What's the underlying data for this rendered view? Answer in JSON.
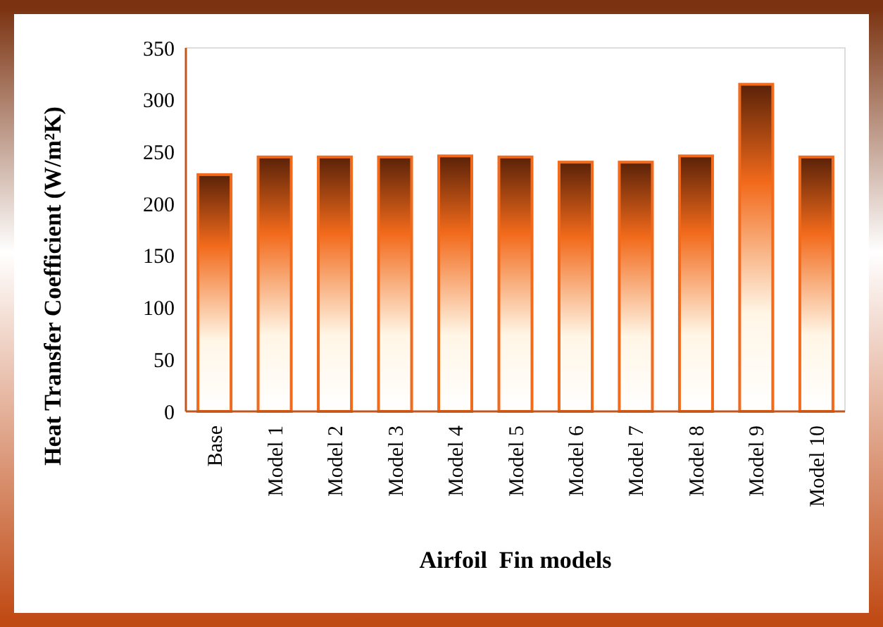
{
  "chart_data": {
    "type": "bar",
    "xlabel": "Airfoil  Fin models",
    "ylabel": "Heat Transfer Coefficient (W/m²K)",
    "categories": [
      "Base",
      "Model 1",
      "Model 2",
      "Model 3",
      "Model 4",
      "Model 5",
      "Model 6",
      "Model 7",
      "Model 8",
      "Model 9",
      "Model 10"
    ],
    "values": [
      228,
      245,
      245,
      245,
      246,
      245,
      240,
      240,
      246,
      315,
      245
    ],
    "color": "#f26a1b",
    "ylim": [
      0,
      350
    ],
    "yticks": [
      0,
      50,
      100,
      150,
      200,
      250,
      300,
      350
    ],
    "grid": false
  }
}
